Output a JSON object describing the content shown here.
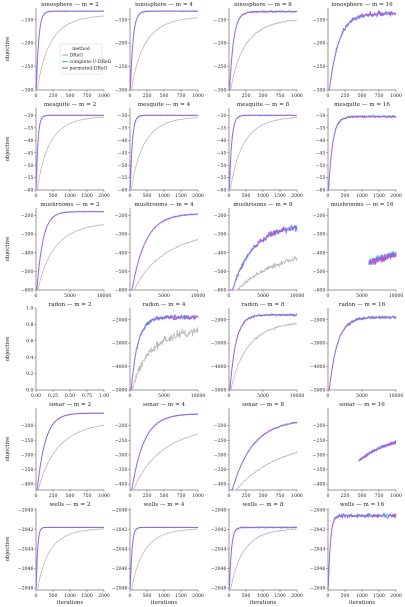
{
  "figure": {
    "ylabel": "objective",
    "xlabel": "iterations",
    "legend": {
      "title": "method",
      "entries": [
        "DReG",
        "complete-U-DReG",
        "permuted-DReG"
      ],
      "colors": [
        "#b8b8b8",
        "#2ec4e8",
        "#b05ad8"
      ]
    }
  },
  "chart_data": [
    {
      "type": "line",
      "row": 0,
      "col": 0,
      "title": "ionosphere — m = 2",
      "xlim": [
        0,
        1000
      ],
      "xticks": [
        0,
        250,
        500,
        750,
        1000
      ],
      "ylim": [
        -300,
        -125
      ],
      "yticks": [
        -300,
        -250,
        -200,
        -150
      ],
      "final": -132,
      "rise": 0.035,
      "gap": 0.12,
      "noise": 0.004,
      "series": [
        {
          "name": "DReG",
          "shape": "slow"
        },
        {
          "name": "complete-U-DReG",
          "shape": "fast"
        },
        {
          "name": "permuted-DReG",
          "shape": "fast"
        }
      ]
    },
    {
      "type": "line",
      "row": 0,
      "col": 1,
      "title": "ionosphere — m = 4",
      "xlim": [
        0,
        1000
      ],
      "xticks": [
        0,
        250,
        500,
        750,
        1000
      ],
      "ylim": [
        -300,
        -125
      ],
      "yticks": [
        -300,
        -250,
        -200,
        -150
      ],
      "final": -132,
      "rise": 0.04,
      "gap": 0.18,
      "noise": 0.006,
      "series": [
        {
          "name": "DReG",
          "shape": "slow"
        },
        {
          "name": "complete-U-DReG",
          "shape": "fast"
        },
        {
          "name": "permuted-DReG",
          "shape": "fast"
        }
      ]
    },
    {
      "type": "line",
      "row": 0,
      "col": 2,
      "title": "ionosphere — m = 8",
      "xlim": [
        0,
        1000
      ],
      "xticks": [
        0,
        250,
        500,
        750,
        1000
      ],
      "ylim": [
        -300,
        -125
      ],
      "yticks": [
        -300,
        -250,
        -200,
        -150
      ],
      "final": -133,
      "rise": 0.06,
      "gap": 0.22,
      "noise": 0.015,
      "series": [
        {
          "name": "DReG",
          "shape": "slow"
        },
        {
          "name": "complete-U-DReG",
          "shape": "fast"
        },
        {
          "name": "permuted-DReG",
          "shape": "fast"
        }
      ]
    },
    {
      "type": "line",
      "row": 0,
      "col": 3,
      "title": "ionosphere — m = 16",
      "xlim": [
        0,
        1000
      ],
      "xticks": [
        0,
        250,
        500,
        750,
        1000
      ],
      "ylim": [
        -300,
        -125
      ],
      "yticks": [
        -300,
        -250,
        -200,
        -150
      ],
      "final": -137,
      "rise": 0.14,
      "gap": 0,
      "noise": 0.045,
      "series": [
        {
          "name": "complete-U-DReG",
          "shape": "fast"
        },
        {
          "name": "permuted-DReG",
          "shape": "fast"
        }
      ]
    },
    {
      "type": "line",
      "row": 1,
      "col": 0,
      "title": "mesquite — m = 2",
      "xlim": [
        0,
        2000
      ],
      "xticks": [
        0,
        500,
        1000,
        1500,
        2000
      ],
      "ylim": [
        -60,
        -27
      ],
      "yticks": [
        -60,
        -55,
        -50,
        -45,
        -40,
        -35,
        -30
      ],
      "final": -30,
      "rise": 0.025,
      "gap": 0.02,
      "noise": 0.003,
      "series": [
        {
          "name": "DReG",
          "shape": "slow"
        },
        {
          "name": "complete-U-DReG",
          "shape": "fast"
        },
        {
          "name": "permuted-DReG",
          "shape": "fast"
        }
      ]
    },
    {
      "type": "line",
      "row": 1,
      "col": 1,
      "title": "mesquite — m = 4",
      "xlim": [
        0,
        2000
      ],
      "xticks": [
        0,
        500,
        1000,
        1500,
        2000
      ],
      "ylim": [
        -60,
        -27
      ],
      "yticks": [
        -60,
        -55,
        -50,
        -45,
        -40,
        -35,
        -30
      ],
      "final": -30,
      "rise": 0.03,
      "gap": 0.03,
      "noise": 0.004,
      "series": [
        {
          "name": "DReG",
          "shape": "slow"
        },
        {
          "name": "complete-U-DReG",
          "shape": "fast"
        },
        {
          "name": "permuted-DReG",
          "shape": "fast"
        }
      ]
    },
    {
      "type": "line",
      "row": 1,
      "col": 2,
      "title": "mesquite — m = 8",
      "xlim": [
        0,
        2000
      ],
      "xticks": [
        0,
        500,
        1000,
        1500,
        2000
      ],
      "ylim": [
        -60,
        -27
      ],
      "yticks": [
        -60,
        -55,
        -50,
        -45,
        -40,
        -35,
        -30
      ],
      "final": -30,
      "rise": 0.035,
      "gap": 0.03,
      "noise": 0.006,
      "series": [
        {
          "name": "DReG",
          "shape": "slow"
        },
        {
          "name": "complete-U-DReG",
          "shape": "fast"
        },
        {
          "name": "permuted-DReG",
          "shape": "fast"
        }
      ]
    },
    {
      "type": "line",
      "row": 1,
      "col": 3,
      "title": "mesquite — m = 16",
      "xlim": [
        0,
        2000
      ],
      "xticks": [
        0,
        500,
        1000,
        1500,
        2000
      ],
      "ylim": [
        -60,
        -27
      ],
      "yticks": [
        -60,
        -55,
        -50,
        -45,
        -40,
        -35,
        -30
      ],
      "final": -30.5,
      "rise": 0.06,
      "gap": 0,
      "noise": 0.02,
      "series": [
        {
          "name": "complete-U-DReG",
          "shape": "fast"
        },
        {
          "name": "permuted-DReG",
          "shape": "fast"
        }
      ]
    },
    {
      "type": "line",
      "row": 2,
      "col": 0,
      "title": "mushrooms — m = 2",
      "xlim": [
        0,
        10000
      ],
      "xticks": [
        0,
        5000,
        10000
      ],
      "ylim": [
        -600,
        -160
      ],
      "yticks": [
        -600,
        -500,
        -400,
        -300,
        -200
      ],
      "final": -180,
      "rise": 0.09,
      "gap": 0.35,
      "noise": 0.004,
      "series": [
        {
          "name": "DReG",
          "shape": "slow"
        },
        {
          "name": "complete-U-DReG",
          "shape": "fast"
        },
        {
          "name": "permuted-DReG",
          "shape": "fast"
        }
      ]
    },
    {
      "type": "line",
      "row": 2,
      "col": 1,
      "title": "mushrooms — m = 4",
      "xlim": [
        0,
        10000
      ],
      "xticks": [
        0,
        5000,
        10000
      ],
      "ylim": [
        -600,
        -160
      ],
      "yticks": [
        -600,
        -500,
        -400,
        -300,
        -200
      ],
      "final": -190,
      "rise": 0.2,
      "gap": 0.5,
      "noise": 0.012,
      "series": [
        {
          "name": "DReG",
          "shape": "slow"
        },
        {
          "name": "complete-U-DReG",
          "shape": "fast"
        },
        {
          "name": "permuted-DReG",
          "shape": "fast"
        }
      ]
    },
    {
      "type": "line",
      "row": 2,
      "col": 2,
      "title": "mushrooms — m = 8",
      "xlim": [
        0,
        10000
      ],
      "xticks": [
        0,
        5000,
        10000
      ],
      "ylim": [
        -600,
        -160
      ],
      "yticks": [
        -600,
        -500,
        -400,
        -300,
        -200
      ],
      "final": -250,
      "rise": 0.3,
      "gap": 0.6,
      "noise": 0.06,
      "series": [
        {
          "name": "DReG",
          "shape": "slow"
        },
        {
          "name": "complete-U-DReG",
          "shape": "fast"
        },
        {
          "name": "permuted-DReG",
          "shape": "fast"
        }
      ]
    },
    {
      "type": "line",
      "row": 2,
      "col": 3,
      "title": "mushrooms — m = 16",
      "xlim": [
        0,
        10000
      ],
      "xticks": [
        0,
        5000,
        10000
      ],
      "ylim": [
        -600,
        -160
      ],
      "yticks": [
        -600,
        -500,
        -400,
        -300,
        -200
      ],
      "final": -380,
      "rise": 0.45,
      "gap": 0,
      "noise": 0.07,
      "start": 0.6,
      "series": [
        {
          "name": "complete-U-DReG",
          "shape": "fast"
        },
        {
          "name": "permuted-DReG",
          "shape": "fast"
        }
      ]
    },
    {
      "type": "line",
      "row": 3,
      "col": 0,
      "title": "radon — m = 2",
      "xlim": [
        0,
        1
      ],
      "xticks": [
        0,
        0.25,
        0.5,
        0.75,
        1
      ],
      "xticklabels": [
        "0.00",
        "0.25",
        "0.50",
        "0.75",
        "1.00"
      ],
      "ylim": [
        0,
        1
      ],
      "yticks": [
        0,
        0.2,
        0.4,
        0.6,
        0.8,
        1
      ],
      "yticklabels": [
        "0.0",
        "0.2",
        "0.4",
        "0.6",
        "0.8",
        "1.0"
      ],
      "series": []
    },
    {
      "type": "line",
      "row": 3,
      "col": 1,
      "title": "radon — m = 4",
      "xlim": [
        0,
        10000
      ],
      "xticks": [
        0,
        5000,
        10000
      ],
      "ylim": [
        -5000,
        -1500
      ],
      "yticks": [
        -5000,
        -4000,
        -3000,
        -2000
      ],
      "final": -1900,
      "rise": 0.1,
      "gap": 0.4,
      "noise": 0.04,
      "dregNoise": 0.09,
      "series": [
        {
          "name": "DReG",
          "shape": "slow"
        },
        {
          "name": "complete-U-DReG",
          "shape": "fast"
        },
        {
          "name": "permuted-DReG",
          "shape": "fast"
        }
      ]
    },
    {
      "type": "line",
      "row": 3,
      "col": 2,
      "title": "radon — m = 8",
      "xlim": [
        0,
        10000
      ],
      "xticks": [
        0,
        5000,
        10000
      ],
      "ylim": [
        -5000,
        -1500
      ],
      "yticks": [
        -5000,
        -4000,
        -3000,
        -2000
      ],
      "final": -1800,
      "rise": 0.09,
      "gap": 0.2,
      "noise": 0.02,
      "series": [
        {
          "name": "DReG",
          "shape": "slow"
        },
        {
          "name": "complete-U-DReG",
          "shape": "fast"
        },
        {
          "name": "permuted-DReG",
          "shape": "fast"
        }
      ]
    },
    {
      "type": "line",
      "row": 3,
      "col": 3,
      "title": "radon — m = 16",
      "xlim": [
        0,
        10000
      ],
      "xticks": [
        0,
        5000,
        10000
      ],
      "ylim": [
        -5000,
        -1500
      ],
      "yticks": [
        -5000,
        -4000,
        -3000,
        -2000
      ],
      "final": -1900,
      "rise": 0.12,
      "gap": 0,
      "noise": 0.03,
      "series": [
        {
          "name": "complete-U-DReG",
          "shape": "fast"
        },
        {
          "name": "permuted-DReG",
          "shape": "fast"
        }
      ]
    },
    {
      "type": "line",
      "row": 4,
      "col": 0,
      "title": "sonar — m = 2",
      "xlim": [
        0,
        1000
      ],
      "xticks": [
        0,
        250,
        500,
        750,
        1000
      ],
      "ylim": [
        -420,
        -140
      ],
      "yticks": [
        -400,
        -350,
        -300,
        -250,
        -200
      ],
      "final": -158,
      "rise": 0.12,
      "gap": 0.25,
      "noise": 0.004,
      "series": [
        {
          "name": "DReG",
          "shape": "slow"
        },
        {
          "name": "complete-U-DReG",
          "shape": "fast"
        },
        {
          "name": "permuted-DReG",
          "shape": "fast"
        }
      ]
    },
    {
      "type": "line",
      "row": 4,
      "col": 1,
      "title": "sonar — m = 4",
      "xlim": [
        0,
        1000
      ],
      "xticks": [
        0,
        250,
        500,
        750,
        1000
      ],
      "ylim": [
        -420,
        -140
      ],
      "yticks": [
        -400,
        -350,
        -300,
        -250,
        -200
      ],
      "final": -160,
      "rise": 0.18,
      "gap": 0.35,
      "noise": 0.006,
      "series": [
        {
          "name": "DReG",
          "shape": "slow"
        },
        {
          "name": "complete-U-DReG",
          "shape": "fast"
        },
        {
          "name": "permuted-DReG",
          "shape": "fast"
        }
      ]
    },
    {
      "type": "line",
      "row": 4,
      "col": 2,
      "title": "sonar — m = 8",
      "xlim": [
        0,
        1000
      ],
      "xticks": [
        0,
        250,
        500,
        750,
        1000
      ],
      "ylim": [
        -420,
        -140
      ],
      "yticks": [
        -400,
        -350,
        -300,
        -250,
        -200
      ],
      "final": -180,
      "rise": 0.3,
      "gap": 0.5,
      "noise": 0.015,
      "series": [
        {
          "name": "DReG",
          "shape": "slow"
        },
        {
          "name": "complete-U-DReG",
          "shape": "fast"
        },
        {
          "name": "permuted-DReG",
          "shape": "fast"
        }
      ]
    },
    {
      "type": "line",
      "row": 4,
      "col": 3,
      "title": "sonar — m = 16",
      "xlim": [
        0,
        1000
      ],
      "xticks": [
        0,
        250,
        500,
        750,
        1000
      ],
      "ylim": [
        -420,
        -140
      ],
      "yticks": [
        -400,
        -350,
        -300,
        -250,
        -200
      ],
      "final": -225,
      "rise": 0.5,
      "gap": 0,
      "noise": 0.03,
      "start": 0.45,
      "series": [
        {
          "name": "complete-U-DReG",
          "shape": "fast"
        },
        {
          "name": "permuted-DReG",
          "shape": "fast"
        }
      ]
    },
    {
      "type": "line",
      "row": 5,
      "col": 0,
      "title": "wells — m = 2",
      "xlim": [
        0,
        2000
      ],
      "xticks": [
        0,
        500,
        1000,
        1500,
        2000
      ],
      "ylim": [
        -2048.2,
        -2039.8
      ],
      "yticks": [
        -2048,
        -2046,
        -2044,
        -2042,
        -2040
      ],
      "final": -2041.8,
      "rise": 0.02,
      "gap": 0.02,
      "noise": 0.003,
      "series": [
        {
          "name": "DReG",
          "shape": "slow"
        },
        {
          "name": "complete-U-DReG",
          "shape": "fast"
        },
        {
          "name": "permuted-DReG",
          "shape": "fast"
        }
      ]
    },
    {
      "type": "line",
      "row": 5,
      "col": 1,
      "title": "wells — m = 4",
      "xlim": [
        0,
        2000
      ],
      "xticks": [
        0,
        500,
        1000,
        1500,
        2000
      ],
      "ylim": [
        -2048.2,
        -2039.8
      ],
      "yticks": [
        -2048,
        -2046,
        -2044,
        -2042,
        -2040
      ],
      "final": -2041.8,
      "rise": 0.025,
      "gap": 0.02,
      "noise": 0.003,
      "series": [
        {
          "name": "DReG",
          "shape": "slow"
        },
        {
          "name": "complete-U-DReG",
          "shape": "fast"
        },
        {
          "name": "permuted-DReG",
          "shape": "fast"
        }
      ]
    },
    {
      "type": "line",
      "row": 5,
      "col": 2,
      "title": "wells — m = 8",
      "xlim": [
        0,
        2000
      ],
      "xticks": [
        0,
        500,
        1000,
        1500,
        2000
      ],
      "ylim": [
        -2048.2,
        -2039.8
      ],
      "yticks": [
        -2048,
        -2046,
        -2044,
        -2042,
        -2040
      ],
      "final": -2041.8,
      "rise": 0.03,
      "gap": 0.02,
      "noise": 0.01,
      "series": [
        {
          "name": "DReG",
          "shape": "slow"
        },
        {
          "name": "complete-U-DReG",
          "shape": "fast"
        },
        {
          "name": "permuted-DReG",
          "shape": "fast"
        }
      ]
    },
    {
      "type": "line",
      "row": 5,
      "col": 3,
      "title": "wells — m = 16",
      "xlim": [
        0,
        2000
      ],
      "xticks": [
        0,
        500,
        1000,
        1500,
        2000
      ],
      "ylim": [
        -2048.2,
        -2039.8
      ],
      "yticks": [
        -2048,
        -2046,
        -2044,
        -2042,
        -2040
      ],
      "final": -2040.6,
      "rise": 0.03,
      "gap": 0,
      "noise": 0.035,
      "series": [
        {
          "name": "complete-U-DReG",
          "shape": "fast"
        },
        {
          "name": "permuted-DReG",
          "shape": "fast"
        }
      ]
    }
  ]
}
